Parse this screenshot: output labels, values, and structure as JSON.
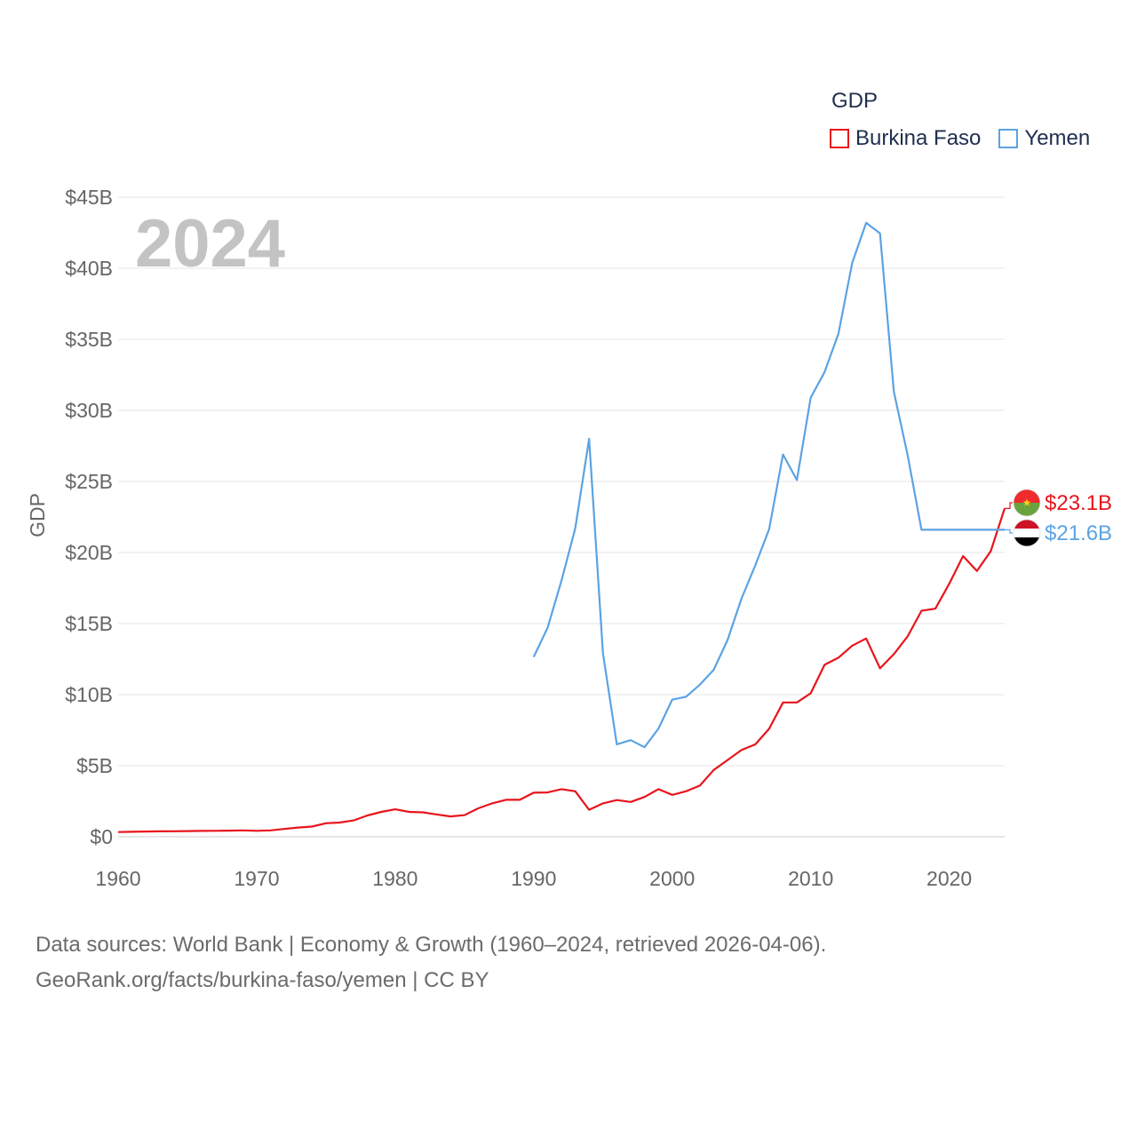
{
  "legend": {
    "title": "GDP",
    "items": [
      {
        "name": "Burkina Faso",
        "color": "#e8141c"
      },
      {
        "name": "Yemen",
        "color": "#5ba3e2"
      }
    ]
  },
  "source": {
    "line1": "Data sources: World Bank | Economy & Growth (1960–2024, retrieved 2026-04-06).",
    "line2": "GeoRank.org/facts/burkina-faso/yemen | CC BY"
  },
  "chart_data": {
    "type": "line",
    "title": "GDP",
    "year_label": "2024",
    "xlabel": "",
    "ylabel": "GDP",
    "xlim": [
      1960,
      2024
    ],
    "ylim": [
      0,
      45
    ],
    "x_ticks": [
      1960,
      1970,
      1980,
      1990,
      2000,
      2010,
      2020
    ],
    "y_ticks": [
      0,
      5,
      10,
      15,
      20,
      25,
      30,
      35,
      40,
      45
    ],
    "y_tick_labels": [
      "$0",
      "$5B",
      "$10B",
      "$15B",
      "$20B",
      "$25B",
      "$30B",
      "$35B",
      "$40B",
      "$45B"
    ],
    "units": "USD billions",
    "series": [
      {
        "name": "Burkina Faso",
        "color": "#e8141c",
        "end_label": "$23.1B",
        "flag": "burkina-faso",
        "x": [
          1960,
          1961,
          1962,
          1963,
          1964,
          1965,
          1966,
          1967,
          1968,
          1969,
          1970,
          1971,
          1972,
          1973,
          1974,
          1975,
          1976,
          1977,
          1978,
          1979,
          1980,
          1981,
          1982,
          1983,
          1984,
          1985,
          1986,
          1987,
          1988,
          1989,
          1990,
          1991,
          1992,
          1993,
          1994,
          1995,
          1996,
          1997,
          1998,
          1999,
          2000,
          2001,
          2002,
          2003,
          2004,
          2005,
          2006,
          2007,
          2008,
          2009,
          2010,
          2011,
          2012,
          2013,
          2014,
          2015,
          2016,
          2017,
          2018,
          2019,
          2020,
          2021,
          2022,
          2023,
          2024
        ],
        "values": [
          0.33,
          0.35,
          0.37,
          0.38,
          0.39,
          0.4,
          0.41,
          0.42,
          0.43,
          0.45,
          0.42,
          0.45,
          0.55,
          0.65,
          0.72,
          0.95,
          1.0,
          1.15,
          1.5,
          1.75,
          1.93,
          1.75,
          1.72,
          1.57,
          1.43,
          1.52,
          2.0,
          2.35,
          2.6,
          2.6,
          3.1,
          3.12,
          3.35,
          3.2,
          1.9,
          2.35,
          2.58,
          2.45,
          2.8,
          3.35,
          2.95,
          3.2,
          3.6,
          4.7,
          5.4,
          6.1,
          6.5,
          7.6,
          9.45,
          9.45,
          10.1,
          12.1,
          12.6,
          13.45,
          13.95,
          11.85,
          12.85,
          14.1,
          15.9,
          16.05,
          17.8,
          19.75,
          18.7,
          20.1,
          23.1
        ]
      },
      {
        "name": "Yemen",
        "color": "#5ba3e2",
        "end_label": "$21.6B",
        "flag": "yemen",
        "x": [
          1990,
          1991,
          1992,
          1993,
          1994,
          1995,
          1996,
          1997,
          1998,
          1999,
          2000,
          2001,
          2002,
          2003,
          2004,
          2005,
          2006,
          2007,
          2008,
          2009,
          2010,
          2011,
          2012,
          2013,
          2014,
          2015,
          2016,
          2017,
          2018,
          2019,
          2020,
          2021,
          2022,
          2023,
          2024
        ],
        "values": [
          12.65,
          14.7,
          18.0,
          21.7,
          28.0,
          12.9,
          6.5,
          6.8,
          6.3,
          7.6,
          9.65,
          9.85,
          10.7,
          11.75,
          13.85,
          16.75,
          19.1,
          21.65,
          26.9,
          25.1,
          30.9,
          32.7,
          35.4,
          40.4,
          43.2,
          42.45,
          31.3,
          26.85,
          21.6,
          21.6,
          21.6,
          21.6,
          21.6,
          21.6,
          21.6
        ]
      }
    ]
  }
}
